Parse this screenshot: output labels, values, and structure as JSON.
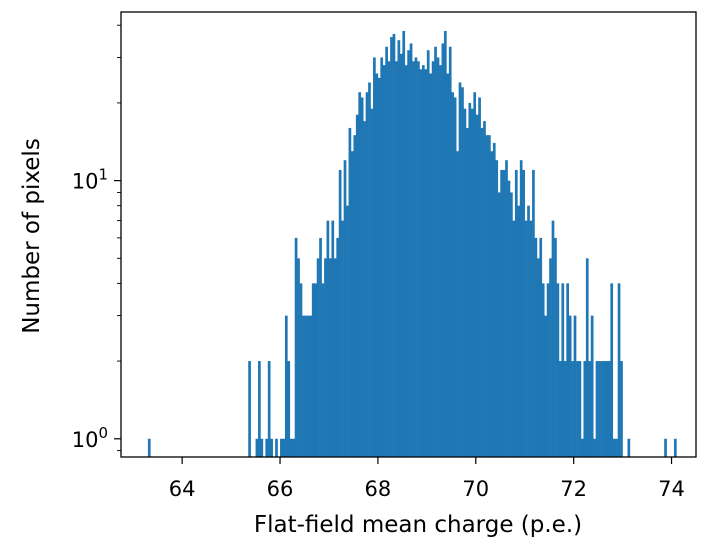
{
  "chart_data": {
    "type": "bar",
    "title": "",
    "xlabel": "Flat-field mean charge (p.e.)",
    "ylabel": "Number of pixels",
    "xlim": [
      62.75,
      74.5
    ],
    "ylim": [
      0.85,
      45
    ],
    "y_scale": "log",
    "x_ticks": [
      {
        "value": 64,
        "label": "64"
      },
      {
        "value": 66,
        "label": "66"
      },
      {
        "value": 68,
        "label": "68"
      },
      {
        "value": 70,
        "label": "70"
      },
      {
        "value": 72,
        "label": "72"
      },
      {
        "value": 74,
        "label": "74"
      }
    ],
    "y_ticks": [
      {
        "value": 1,
        "base": "10",
        "exp": "0"
      },
      {
        "value": 10,
        "base": "10",
        "exp": "1"
      }
    ],
    "grid": false,
    "legend": "none",
    "bar_color": "#1f77b4",
    "bin_width": 0.05,
    "bins": [
      [
        63.3,
        1
      ],
      [
        65.35,
        2
      ],
      [
        65.5,
        1
      ],
      [
        65.55,
        2
      ],
      [
        65.6,
        1
      ],
      [
        65.7,
        1
      ],
      [
        65.75,
        2
      ],
      [
        65.8,
        1
      ],
      [
        65.9,
        1
      ],
      [
        66.0,
        1
      ],
      [
        66.05,
        1
      ],
      [
        66.1,
        3
      ],
      [
        66.15,
        2
      ],
      [
        66.2,
        1
      ],
      [
        66.25,
        1
      ],
      [
        66.3,
        6
      ],
      [
        66.35,
        5
      ],
      [
        66.4,
        4
      ],
      [
        66.45,
        3
      ],
      [
        66.5,
        3
      ],
      [
        66.55,
        3
      ],
      [
        66.6,
        3
      ],
      [
        66.65,
        4
      ],
      [
        66.7,
        4
      ],
      [
        66.75,
        5
      ],
      [
        66.8,
        6
      ],
      [
        66.85,
        4
      ],
      [
        66.9,
        5
      ],
      [
        66.95,
        7
      ],
      [
        67.0,
        5
      ],
      [
        67.05,
        7
      ],
      [
        67.1,
        5
      ],
      [
        67.15,
        6
      ],
      [
        67.2,
        11
      ],
      [
        67.25,
        7
      ],
      [
        67.3,
        12
      ],
      [
        67.35,
        8
      ],
      [
        67.4,
        16
      ],
      [
        67.45,
        13
      ],
      [
        67.5,
        15
      ],
      [
        67.55,
        18
      ],
      [
        67.6,
        22
      ],
      [
        67.65,
        21
      ],
      [
        67.7,
        17
      ],
      [
        67.75,
        22
      ],
      [
        67.8,
        24
      ],
      [
        67.85,
        19
      ],
      [
        67.9,
        30
      ],
      [
        67.95,
        26
      ],
      [
        68.0,
        25
      ],
      [
        68.05,
        30
      ],
      [
        68.1,
        28
      ],
      [
        68.15,
        33
      ],
      [
        68.2,
        29
      ],
      [
        68.25,
        36
      ],
      [
        68.3,
        37
      ],
      [
        68.35,
        29
      ],
      [
        68.4,
        35
      ],
      [
        68.45,
        31
      ],
      [
        68.5,
        38
      ],
      [
        68.55,
        28
      ],
      [
        68.6,
        32
      ],
      [
        68.65,
        34
      ],
      [
        68.7,
        29
      ],
      [
        68.75,
        30
      ],
      [
        68.8,
        29
      ],
      [
        68.85,
        27
      ],
      [
        68.9,
        28
      ],
      [
        68.95,
        27
      ],
      [
        69.0,
        32
      ],
      [
        69.05,
        26
      ],
      [
        69.1,
        29
      ],
      [
        69.15,
        33
      ],
      [
        69.2,
        30
      ],
      [
        69.25,
        28
      ],
      [
        69.3,
        34
      ],
      [
        69.35,
        38
      ],
      [
        69.4,
        26
      ],
      [
        69.45,
        33
      ],
      [
        69.5,
        22
      ],
      [
        69.55,
        21
      ],
      [
        69.6,
        13
      ],
      [
        69.65,
        24
      ],
      [
        69.7,
        23
      ],
      [
        69.75,
        19
      ],
      [
        69.8,
        16
      ],
      [
        69.85,
        20
      ],
      [
        69.9,
        19
      ],
      [
        69.95,
        22
      ],
      [
        70.0,
        18
      ],
      [
        70.05,
        21
      ],
      [
        70.1,
        16
      ],
      [
        70.15,
        17
      ],
      [
        70.2,
        15
      ],
      [
        70.25,
        15
      ],
      [
        70.3,
        13
      ],
      [
        70.35,
        14
      ],
      [
        70.4,
        12
      ],
      [
        70.45,
        9
      ],
      [
        70.5,
        11
      ],
      [
        70.55,
        11
      ],
      [
        70.6,
        12
      ],
      [
        70.65,
        10
      ],
      [
        70.7,
        9
      ],
      [
        70.75,
        7
      ],
      [
        70.8,
        11
      ],
      [
        70.85,
        8
      ],
      [
        70.9,
        12
      ],
      [
        70.95,
        11
      ],
      [
        71.0,
        7
      ],
      [
        71.05,
        8
      ],
      [
        71.1,
        7
      ],
      [
        71.15,
        11
      ],
      [
        71.2,
        6
      ],
      [
        71.25,
        5
      ],
      [
        71.3,
        6
      ],
      [
        71.35,
        4
      ],
      [
        71.4,
        3
      ],
      [
        71.45,
        4
      ],
      [
        71.5,
        5
      ],
      [
        71.55,
        7
      ],
      [
        71.6,
        6
      ],
      [
        71.65,
        4
      ],
      [
        71.7,
        2
      ],
      [
        71.75,
        4
      ],
      [
        71.8,
        2
      ],
      [
        71.85,
        4
      ],
      [
        71.9,
        3
      ],
      [
        71.95,
        2
      ],
      [
        72.0,
        3
      ],
      [
        72.05,
        2
      ],
      [
        72.1,
        2
      ],
      [
        72.15,
        1
      ],
      [
        72.2,
        2
      ],
      [
        72.25,
        5
      ],
      [
        72.3,
        2
      ],
      [
        72.35,
        3
      ],
      [
        72.4,
        1
      ],
      [
        72.45,
        2
      ],
      [
        72.5,
        2
      ],
      [
        72.55,
        2
      ],
      [
        72.6,
        2
      ],
      [
        72.65,
        2
      ],
      [
        72.7,
        2
      ],
      [
        72.75,
        4
      ],
      [
        72.8,
        1
      ],
      [
        72.85,
        1
      ],
      [
        72.9,
        4
      ],
      [
        72.95,
        2
      ],
      [
        73.1,
        1
      ],
      [
        73.85,
        1
      ],
      [
        74.05,
        1
      ]
    ]
  }
}
